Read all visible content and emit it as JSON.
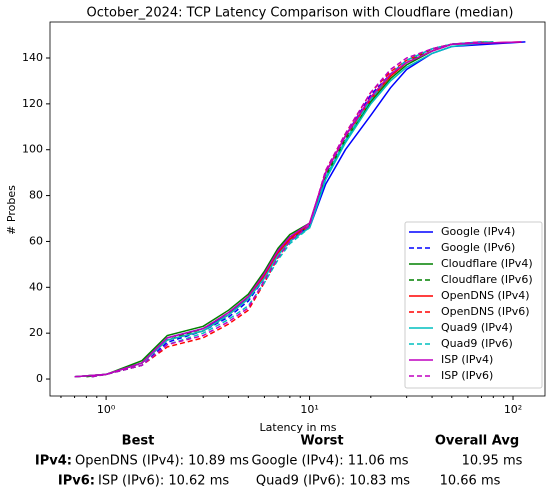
{
  "chart_data": {
    "type": "line",
    "title": "October_2024: TCP Latency Comparison with Cloudflare (median)",
    "xlabel": "Latency in ms",
    "ylabel": "# Probes",
    "xscale": "log",
    "xlim": [
      0.53,
      143.6
    ],
    "ylim": [
      -7.4,
      155.7
    ],
    "xticks": [
      {
        "value": 1,
        "label": "10⁰"
      },
      {
        "value": 10,
        "label": "10¹"
      },
      {
        "value": 100,
        "label": "10²"
      }
    ],
    "xminorticks": [
      0.6,
      0.7,
      0.8,
      0.9,
      2,
      3,
      4,
      5,
      6,
      7,
      8,
      9,
      20,
      30,
      40,
      50,
      60,
      70,
      80,
      90
    ],
    "yticks": [
      0,
      20,
      40,
      60,
      80,
      100,
      120,
      140
    ],
    "legend": "lower right",
    "series": [
      {
        "name": "Google (IPv4)",
        "color": "#0000ff",
        "linestyle": "solid",
        "x": [
          0.7,
          1,
          1.5,
          2,
          3,
          4,
          5,
          6,
          7,
          8,
          10,
          12,
          15,
          20,
          25,
          30,
          40,
          50,
          115
        ],
        "values": [
          1,
          2,
          7,
          18,
          22,
          28,
          36,
          46,
          56,
          62,
          66,
          85,
          100,
          115,
          127,
          135,
          142,
          145,
          147
        ]
      },
      {
        "name": "Google (IPv6)",
        "color": "#0000ff",
        "linestyle": "dashed",
        "x": [
          0.85,
          1,
          1.5,
          2,
          3,
          4,
          5,
          6,
          7,
          8,
          10,
          12,
          15,
          20,
          25,
          30,
          40,
          50,
          70
        ],
        "values": [
          1,
          2,
          6,
          16,
          21,
          27,
          34,
          44,
          54,
          60,
          67,
          90,
          106,
          124,
          133,
          139,
          144,
          146,
          147
        ]
      },
      {
        "name": "Cloudflare (IPv4)",
        "color": "#008000",
        "linestyle": "solid",
        "x": [
          0.7,
          1,
          1.5,
          2,
          3,
          4,
          5,
          6,
          7,
          8,
          10,
          12,
          15,
          20,
          25,
          30,
          40,
          50,
          80
        ],
        "values": [
          1,
          2,
          8,
          19,
          23,
          30,
          37,
          47,
          57,
          63,
          68,
          88,
          104,
          121,
          131,
          137,
          143,
          146,
          147
        ]
      },
      {
        "name": "Cloudflare (IPv6)",
        "color": "#008000",
        "linestyle": "dashed",
        "x": [
          0.8,
          1,
          1.5,
          2,
          3,
          4,
          5,
          6,
          7,
          8,
          10,
          12,
          15,
          20,
          25,
          30,
          40,
          50,
          75
        ],
        "values": [
          1,
          2,
          7,
          17,
          22,
          29,
          35,
          45,
          55,
          61,
          67,
          89,
          105,
          123,
          132,
          138,
          144,
          146,
          147
        ]
      },
      {
        "name": "OpenDNS (IPv4)",
        "color": "#ff0000",
        "linestyle": "solid",
        "x": [
          0.7,
          1,
          1.5,
          2,
          3,
          4,
          5,
          6,
          7,
          8,
          10,
          12,
          15,
          20,
          25,
          30,
          40,
          50,
          110
        ],
        "values": [
          1,
          2,
          7,
          17,
          21,
          28,
          35,
          45,
          55,
          61,
          68,
          90,
          106,
          122,
          132,
          138,
          143,
          146,
          147
        ]
      },
      {
        "name": "OpenDNS (IPv6)",
        "color": "#ff0000",
        "linestyle": "dashed",
        "x": [
          0.85,
          1,
          1.5,
          2,
          3,
          4,
          5,
          6,
          7,
          8,
          10,
          12,
          15,
          20,
          25,
          30,
          40,
          50,
          70
        ],
        "values": [
          1,
          2,
          6,
          14,
          18,
          24,
          30,
          42,
          53,
          60,
          67,
          91,
          107,
          125,
          134,
          139,
          144,
          146,
          147
        ]
      },
      {
        "name": "Quad9 (IPv4)",
        "color": "#00bfbf",
        "linestyle": "solid",
        "x": [
          0.7,
          1,
          1.5,
          2,
          3,
          4,
          5,
          6,
          7,
          8,
          10,
          12,
          15,
          20,
          25,
          30,
          40,
          50,
          80
        ],
        "values": [
          1,
          2,
          7,
          17,
          21,
          28,
          35,
          44,
          54,
          60,
          66,
          87,
          103,
          120,
          130,
          136,
          142,
          145,
          147
        ]
      },
      {
        "name": "Quad9 (IPv6)",
        "color": "#00bfbf",
        "linestyle": "dashed",
        "x": [
          0.85,
          1,
          1.5,
          2,
          3,
          4,
          5,
          6,
          7,
          8,
          10,
          12,
          15,
          20,
          25,
          30,
          40,
          50,
          75
        ],
        "values": [
          1,
          2,
          6,
          15,
          20,
          26,
          32,
          42,
          52,
          59,
          66,
          88,
          104,
          122,
          133,
          139,
          144,
          146,
          147
        ]
      },
      {
        "name": "ISP (IPv4)",
        "color": "#bf00bf",
        "linestyle": "solid",
        "x": [
          0.7,
          1,
          1.5,
          2,
          3,
          4,
          5,
          6,
          7,
          8,
          10,
          12,
          15,
          20,
          25,
          30,
          40,
          50,
          110
        ],
        "values": [
          1,
          2,
          7,
          18,
          22,
          29,
          36,
          46,
          56,
          62,
          68,
          90,
          106,
          123,
          133,
          138,
          143,
          146,
          147
        ]
      },
      {
        "name": "ISP (IPv6)",
        "color": "#bf00bf",
        "linestyle": "dashed",
        "x": [
          0.85,
          1,
          1.5,
          2,
          3,
          4,
          5,
          6,
          7,
          8,
          10,
          12,
          15,
          20,
          25,
          30,
          40,
          50,
          70
        ],
        "values": [
          1,
          2,
          6,
          15,
          19,
          25,
          31,
          43,
          53,
          60,
          67,
          91,
          107,
          125,
          135,
          140,
          144,
          146,
          147
        ]
      }
    ]
  },
  "summary_table": {
    "columns": [
      "Best",
      "Worst",
      "Overall Avg"
    ],
    "rows": [
      [
        "IPv4:",
        "OpenDNS (IPv4): 10.89 ms",
        "Google (IPv4): 11.06 ms",
        "10.95 ms"
      ],
      [
        "IPv6:",
        "ISP (IPv6): 10.62 ms",
        "Quad9 (IPv6): 10.83 ms",
        "10.66 ms"
      ]
    ]
  }
}
